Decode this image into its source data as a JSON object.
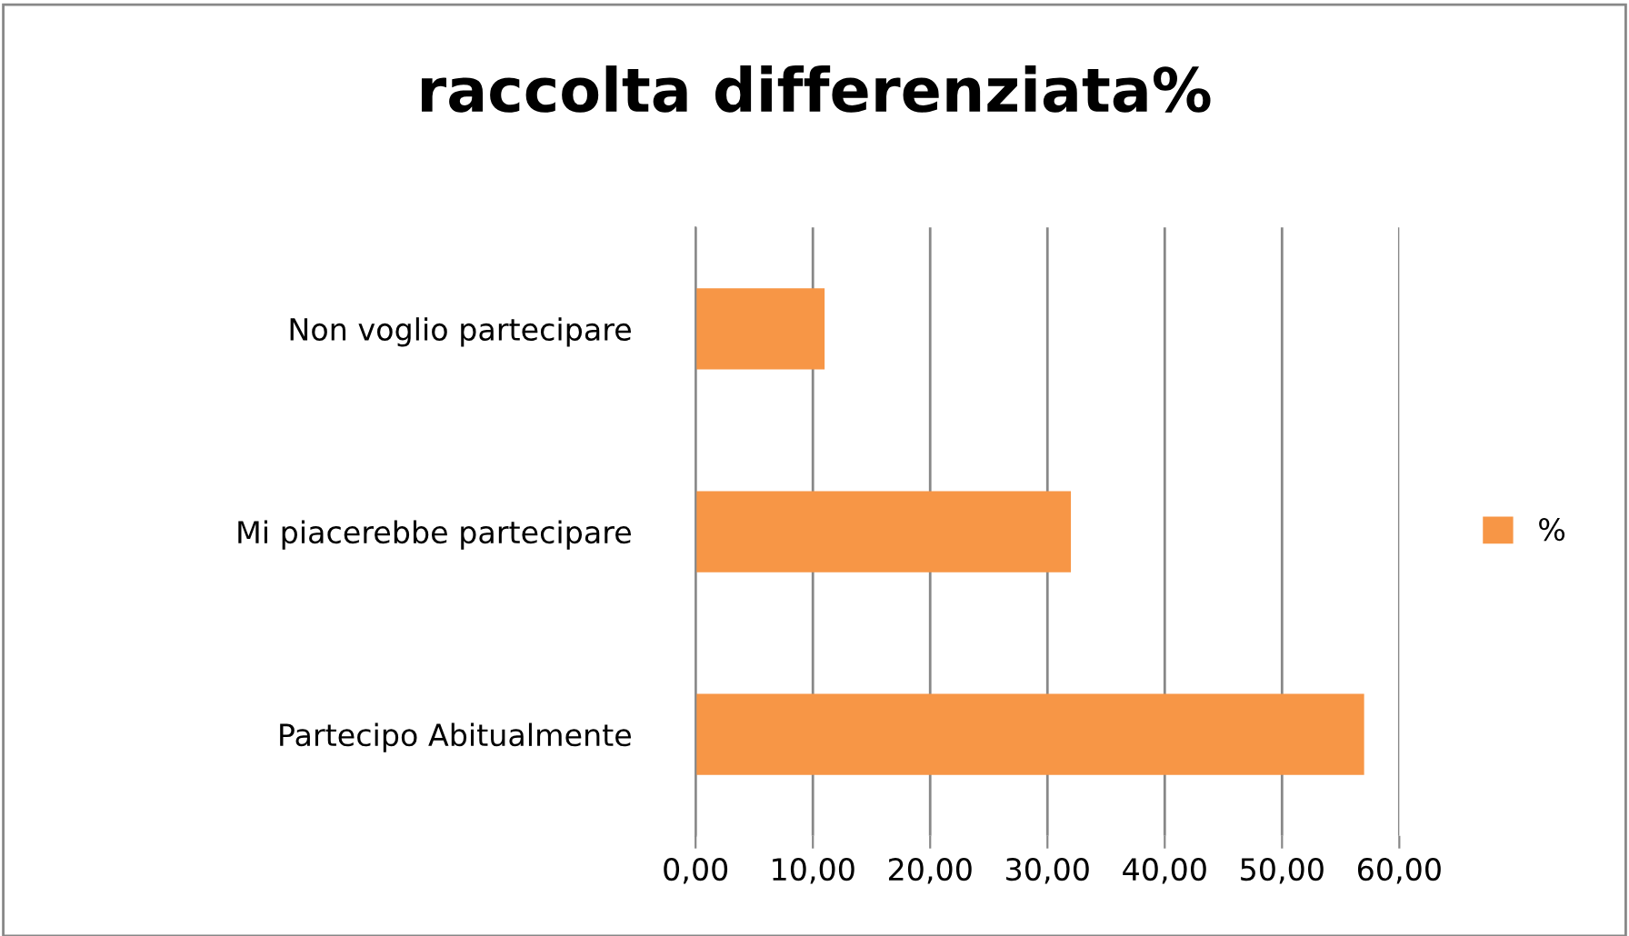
{
  "chart_data": {
    "type": "bar",
    "orientation": "horizontal",
    "title": "raccolta differenziata%",
    "categories": [
      "Non voglio partecipare",
      "Mi piacerebbe partecipare",
      "Partecipo Abitualmente"
    ],
    "series": [
      {
        "name": "%",
        "color": "#f79646",
        "values": [
          11,
          32,
          57
        ]
      }
    ],
    "xlim": [
      0,
      60
    ],
    "xticks": [
      {
        "value": 0,
        "label": "0,00"
      },
      {
        "value": 10,
        "label": "10,00"
      },
      {
        "value": 20,
        "label": "20,00"
      },
      {
        "value": 30,
        "label": "30,00"
      },
      {
        "value": 40,
        "label": "40,00"
      },
      {
        "value": 50,
        "label": "50,00"
      },
      {
        "value": 60,
        "label": "60,00"
      }
    ],
    "grid": "x",
    "legend": "right"
  }
}
